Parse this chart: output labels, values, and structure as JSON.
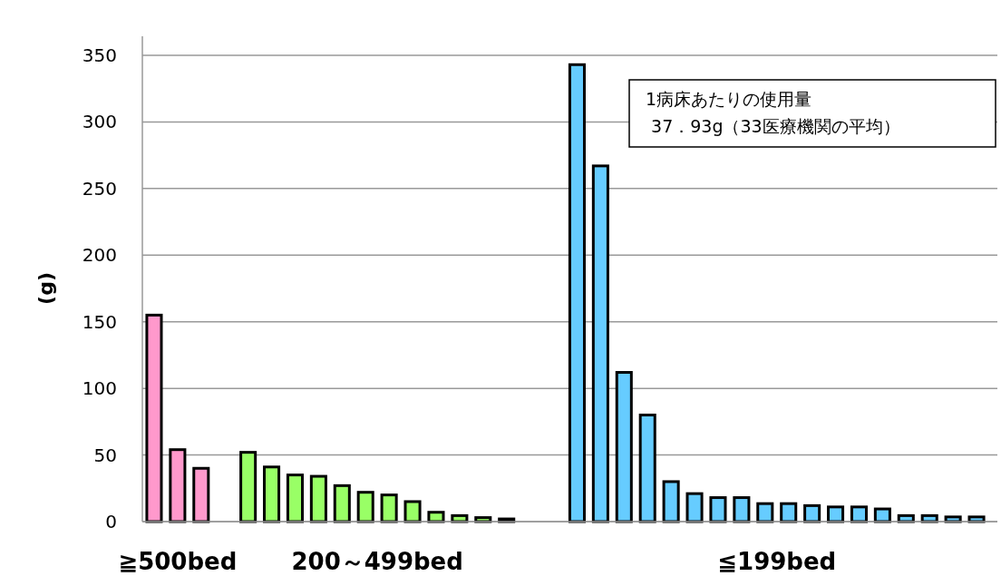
{
  "chart_data": {
    "type": "bar",
    "ylabel": "(g)",
    "categories": [
      null,
      null,
      null,
      null,
      null,
      null,
      null,
      null,
      null,
      null,
      null,
      null,
      null,
      null,
      null,
      null,
      null,
      null,
      null,
      null,
      null,
      null,
      null,
      null,
      null,
      null,
      null,
      null,
      null,
      null,
      null,
      null,
      null,
      null,
      null,
      null
    ],
    "values": [
      155,
      54,
      40,
      null,
      52,
      41,
      35,
      34,
      27,
      22,
      20,
      15,
      7,
      4.5,
      3,
      2,
      null,
      null,
      343,
      267,
      112,
      80,
      30,
      21,
      18,
      18,
      13.5,
      13.5,
      12,
      11,
      11,
      9.5,
      4.5,
      4.5,
      3.5,
      3.5
    ],
    "colors": [
      "#ff99cc",
      "#ff99cc",
      "#ff99cc",
      null,
      "#99ff66",
      "#99ff66",
      "#99ff66",
      "#99ff66",
      "#99ff66",
      "#99ff66",
      "#99ff66",
      "#99ff66",
      "#99ff66",
      "#99ff66",
      "#99ff66",
      "#99ff66",
      null,
      null,
      "#66ccff",
      "#66ccff",
      "#66ccff",
      "#66ccff",
      "#66ccff",
      "#66ccff",
      "#66ccff",
      "#66ccff",
      "#66ccff",
      "#66ccff",
      "#66ccff",
      "#66ccff",
      "#66ccff",
      "#66ccff",
      "#66ccff",
      "#66ccff",
      "#66ccff",
      "#66ccff"
    ],
    "ylim": [
      0,
      350
    ],
    "yticks": [
      0,
      50,
      100,
      150,
      200,
      250,
      300,
      350
    ],
    "grid": "y",
    "annotations": [
      "≧500bed",
      "200～499bed",
      "≦199bed",
      "1病床あたりの使用量\n 37．93g（33医療機関の平均）"
    ]
  }
}
